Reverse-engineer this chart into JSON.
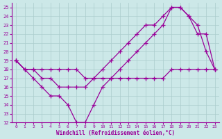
{
  "xlabel": "Windchill (Refroidissement éolien,°C)",
  "bg_color": "#cce8e8",
  "line_color": "#990099",
  "grid_color": "#aacccc",
  "xlim": [
    -0.5,
    23.5
  ],
  "ylim": [
    12,
    25.5
  ],
  "xticks": [
    0,
    1,
    2,
    3,
    4,
    5,
    6,
    7,
    8,
    9,
    10,
    11,
    12,
    13,
    14,
    15,
    16,
    17,
    18,
    19,
    20,
    21,
    22,
    23
  ],
  "yticks": [
    12,
    13,
    14,
    15,
    16,
    17,
    18,
    19,
    20,
    21,
    22,
    23,
    24,
    25
  ],
  "line1_x": [
    0,
    1,
    2,
    3,
    4,
    5,
    6,
    7,
    8,
    9,
    10,
    11,
    12,
    13,
    14,
    15,
    16,
    17,
    18,
    19,
    20,
    21,
    22,
    23
  ],
  "line1_y": [
    19,
    18,
    18,
    18,
    18,
    18,
    18,
    18,
    17,
    17,
    17,
    17,
    17,
    17,
    17,
    17,
    17,
    17,
    18,
    18,
    18,
    18,
    18,
    18
  ],
  "line2_x": [
    0,
    1,
    2,
    3,
    4,
    5,
    6,
    7,
    8,
    9,
    10,
    11,
    12,
    13,
    14,
    15,
    16,
    17,
    18,
    19,
    20,
    21,
    22,
    23
  ],
  "line2_y": [
    19,
    18,
    17,
    16,
    15,
    15,
    14,
    12,
    12,
    14,
    16,
    17,
    18,
    19,
    20,
    21,
    22,
    23,
    25,
    25,
    24,
    23,
    20,
    18
  ],
  "line3_x": [
    0,
    1,
    2,
    3,
    4,
    5,
    6,
    7,
    8,
    9,
    10,
    11,
    12,
    13,
    14,
    15,
    16,
    17,
    18,
    19,
    20,
    21,
    22,
    23
  ],
  "line3_y": [
    19,
    18,
    18,
    17,
    17,
    16,
    16,
    16,
    16,
    17,
    18,
    19,
    20,
    21,
    22,
    23,
    23,
    24,
    25,
    25,
    24,
    22,
    22,
    18
  ]
}
